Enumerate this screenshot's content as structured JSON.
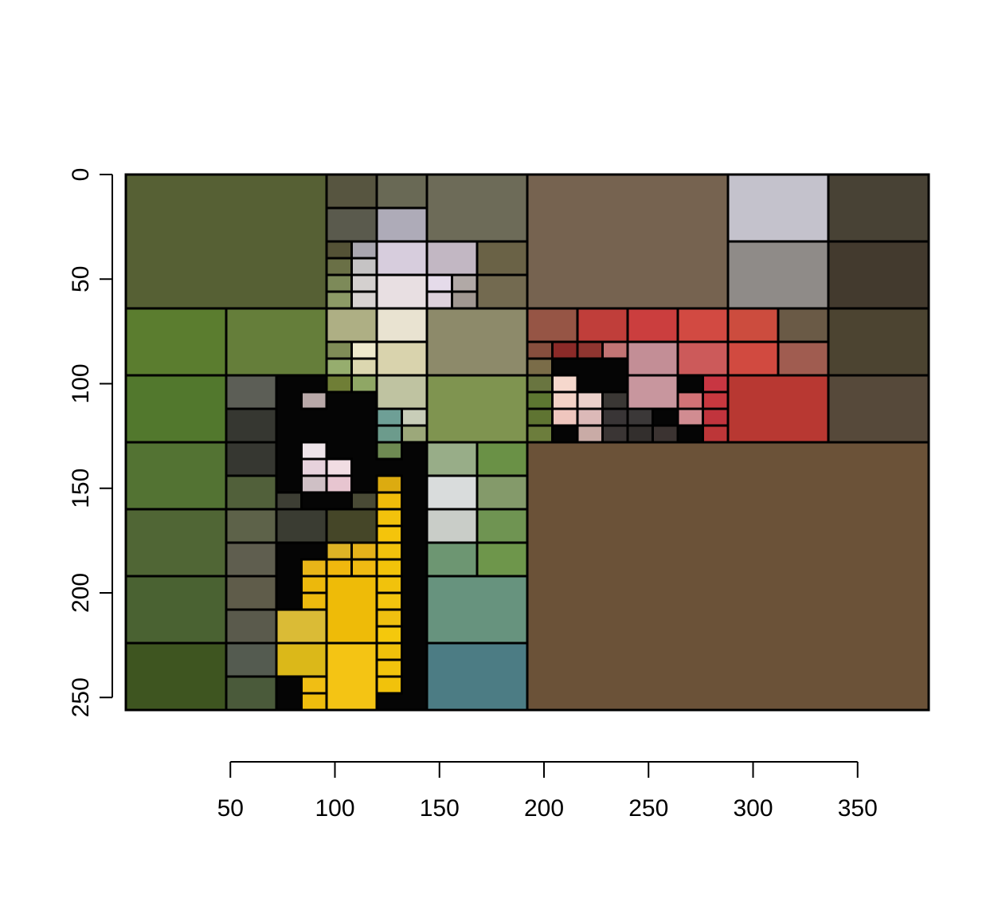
{
  "chart_data": {
    "type": "heatmap",
    "description_kind": "image quadtree tile plot",
    "title": "",
    "xlabel": "",
    "ylabel": "",
    "xlim": [
      0,
      384
    ],
    "ylim": [
      256,
      0
    ],
    "x_ticks": [
      50,
      100,
      150,
      200,
      250,
      300,
      350
    ],
    "y_ticks": [
      0,
      50,
      100,
      150,
      200,
      250
    ],
    "grid": false,
    "background_fill": "#050505",
    "tiles": [
      [
        0,
        0,
        96,
        64,
        "#566034"
      ],
      [
        96,
        0,
        24,
        16,
        "#575540"
      ],
      [
        120,
        0,
        24,
        16,
        "#696955"
      ],
      [
        144,
        0,
        48,
        32,
        "#6d6b58"
      ],
      [
        96,
        16,
        24,
        16,
        "#5a5a4d"
      ],
      [
        120,
        16,
        24,
        16,
        "#aeabb8"
      ],
      [
        96,
        32,
        12,
        8,
        "#545236"
      ],
      [
        108,
        32,
        12,
        8,
        "#a9a6b0"
      ],
      [
        96,
        40,
        12,
        8,
        "#6a7046"
      ],
      [
        108,
        40,
        12,
        8,
        "#c5c3c4"
      ],
      [
        96,
        48,
        12,
        8,
        "#7d8a59"
      ],
      [
        108,
        48,
        12,
        8,
        "#d4d0cf"
      ],
      [
        96,
        56,
        12,
        8,
        "#8c9a66"
      ],
      [
        108,
        56,
        12,
        8,
        "#d8d3d2"
      ],
      [
        120,
        32,
        24,
        16,
        "#d7cddd"
      ],
      [
        120,
        48,
        24,
        16,
        "#e8dfe2"
      ],
      [
        144,
        32,
        24,
        16,
        "#c2b7c3"
      ],
      [
        168,
        32,
        24,
        16,
        "#6a6246"
      ],
      [
        144,
        48,
        12,
        8,
        "#e5dbea"
      ],
      [
        156,
        48,
        12,
        8,
        "#b1a9a6"
      ],
      [
        144,
        56,
        12,
        8,
        "#ddd1dc"
      ],
      [
        156,
        56,
        12,
        8,
        "#a09791"
      ],
      [
        168,
        48,
        24,
        16,
        "#736a50"
      ],
      [
        192,
        0,
        96,
        64,
        "#766350"
      ],
      [
        288,
        0,
        48,
        32,
        "#c4c2cc"
      ],
      [
        336,
        0,
        48,
        32,
        "#484235"
      ],
      [
        288,
        32,
        48,
        32,
        "#8f8b88"
      ],
      [
        336,
        32,
        48,
        32,
        "#433a2e"
      ],
      [
        0,
        64,
        48,
        32,
        "#5b7d2f"
      ],
      [
        48,
        64,
        48,
        32,
        "#657e3a"
      ],
      [
        96,
        64,
        24,
        16,
        "#aeaf84"
      ],
      [
        120,
        64,
        24,
        16,
        "#e9e3d1"
      ],
      [
        96,
        80,
        12,
        8,
        "#7f8c57"
      ],
      [
        108,
        80,
        12,
        8,
        "#efeacd"
      ],
      [
        96,
        88,
        12,
        8,
        "#96ad6e"
      ],
      [
        108,
        88,
        12,
        8,
        "#dcd7b0"
      ],
      [
        120,
        80,
        24,
        16,
        "#d9d3ad"
      ],
      [
        144,
        64,
        48,
        32,
        "#8d8a6a"
      ],
      [
        192,
        64,
        24,
        16,
        "#965545"
      ],
      [
        216,
        64,
        24,
        16,
        "#c03e3a"
      ],
      [
        240,
        64,
        24,
        16,
        "#cb3e3e"
      ],
      [
        264,
        64,
        24,
        16,
        "#d24a42"
      ],
      [
        288,
        64,
        24,
        16,
        "#cc4c3e"
      ],
      [
        312,
        64,
        24,
        16,
        "#6a5a46"
      ],
      [
        336,
        64,
        48,
        32,
        "#4c4431"
      ],
      [
        192,
        80,
        12,
        8,
        "#874f3e"
      ],
      [
        204,
        80,
        12,
        8,
        "#8b2a28"
      ],
      [
        216,
        80,
        12,
        8,
        "#8f3530"
      ],
      [
        228,
        80,
        12,
        8,
        "#c27474"
      ],
      [
        192,
        88,
        12,
        8,
        "#7a6c48"
      ],
      [
        240,
        80,
        24,
        16,
        "#c38e96"
      ],
      [
        264,
        80,
        24,
        16,
        "#cc5a5a"
      ],
      [
        288,
        80,
        24,
        16,
        "#d14a40"
      ],
      [
        312,
        80,
        24,
        16,
        "#a05c50"
      ],
      [
        0,
        96,
        48,
        32,
        "#52782d"
      ],
      [
        48,
        96,
        24,
        16,
        "#5c5e56"
      ],
      [
        48,
        112,
        24,
        16,
        "#363731"
      ],
      [
        96,
        96,
        12,
        8,
        "#6f7e36"
      ],
      [
        108,
        96,
        12,
        8,
        "#8fa765"
      ],
      [
        120,
        96,
        24,
        16,
        "#bfc3a1"
      ],
      [
        144,
        96,
        48,
        32,
        "#7f9450"
      ],
      [
        192,
        96,
        12,
        8,
        "#697540"
      ],
      [
        192,
        104,
        12,
        8,
        "#5d7731"
      ],
      [
        192,
        112,
        12,
        8,
        "#5f7432"
      ],
      [
        192,
        120,
        12,
        8,
        "#6c7d3c"
      ],
      [
        204,
        96,
        12,
        8,
        "#f6d8cd"
      ],
      [
        204,
        104,
        12,
        8,
        "#f3d2c6"
      ],
      [
        204,
        112,
        12,
        8,
        "#efc6be"
      ],
      [
        216,
        104,
        12,
        8,
        "#ead0ca"
      ],
      [
        216,
        112,
        12,
        8,
        "#dcb9b8"
      ],
      [
        216,
        120,
        12,
        8,
        "#c9aba6"
      ],
      [
        228,
        104,
        12,
        8,
        "#3a3734"
      ],
      [
        228,
        112,
        12,
        8,
        "#393536"
      ],
      [
        228,
        120,
        12,
        8,
        "#3a3534"
      ],
      [
        240,
        96,
        24,
        16,
        "#c8969e"
      ],
      [
        240,
        112,
        12,
        8,
        "#3b3838"
      ],
      [
        240,
        120,
        12,
        8,
        "#332f2d"
      ],
      [
        252,
        120,
        12,
        8,
        "#3b3331"
      ],
      [
        264,
        104,
        12,
        8,
        "#d27276"
      ],
      [
        264,
        112,
        12,
        8,
        "#d18c91"
      ],
      [
        276,
        96,
        12,
        8,
        "#c83642"
      ],
      [
        276,
        104,
        12,
        8,
        "#c8383f"
      ],
      [
        276,
        112,
        12,
        8,
        "#c1343d"
      ],
      [
        276,
        120,
        12,
        8,
        "#bd3638"
      ],
      [
        288,
        96,
        48,
        32,
        "#b83832"
      ],
      [
        336,
        96,
        48,
        32,
        "#56493a"
      ],
      [
        120,
        112,
        12,
        8,
        "#6e9f96"
      ],
      [
        132,
        112,
        12,
        8,
        "#c8cdb8"
      ],
      [
        120,
        120,
        12,
        8,
        "#6c9b8c"
      ],
      [
        132,
        120,
        12,
        8,
        "#9ca87a"
      ],
      [
        120,
        128,
        12,
        8,
        "#6e8a52"
      ],
      [
        0,
        128,
        48,
        32,
        "#537333"
      ],
      [
        48,
        128,
        24,
        16,
        "#363731"
      ],
      [
        48,
        144,
        24,
        16,
        "#51603a"
      ],
      [
        144,
        128,
        24,
        16,
        "#98ad88"
      ],
      [
        168,
        128,
        24,
        16,
        "#6a9146"
      ],
      [
        144,
        144,
        24,
        16,
        "#d9dcdc"
      ],
      [
        168,
        144,
        24,
        16,
        "#849a6a"
      ],
      [
        192,
        128,
        192,
        128,
        "#6b5238"
      ],
      [
        84,
        128,
        12,
        8,
        "#eee4e9"
      ],
      [
        84,
        136,
        12,
        8,
        "#e7d2dc"
      ],
      [
        96,
        136,
        12,
        8,
        "#f1dde3"
      ],
      [
        96,
        144,
        12,
        8,
        "#e7c5d0"
      ],
      [
        84,
        144,
        12,
        8,
        "#cfc0c5"
      ],
      [
        84,
        104,
        12,
        8,
        "#b8a8a8"
      ],
      [
        72,
        152,
        12,
        8,
        "#3d3e34"
      ],
      [
        108,
        152,
        12,
        8,
        "#494a35"
      ],
      [
        120,
        144,
        12,
        8,
        "#dcab10"
      ],
      [
        120,
        152,
        12,
        8,
        "#f0bc0a"
      ],
      [
        120,
        160,
        12,
        8,
        "#f2c20c"
      ],
      [
        120,
        168,
        12,
        8,
        "#f4c40b"
      ],
      [
        120,
        176,
        12,
        8,
        "#f1c20c"
      ],
      [
        120,
        184,
        12,
        8,
        "#f2c30a"
      ],
      [
        120,
        192,
        12,
        8,
        "#f1c20c"
      ],
      [
        120,
        200,
        12,
        8,
        "#f3c50e"
      ],
      [
        120,
        208,
        12,
        8,
        "#efc010"
      ],
      [
        120,
        216,
        12,
        8,
        "#f4c80c"
      ],
      [
        120,
        224,
        12,
        8,
        "#f0c10b"
      ],
      [
        120,
        232,
        12,
        8,
        "#f2c40d"
      ],
      [
        120,
        240,
        12,
        8,
        "#f1c20b"
      ],
      [
        0,
        160,
        48,
        32,
        "#506635"
      ],
      [
        48,
        160,
        24,
        16,
        "#5d6249"
      ],
      [
        48,
        176,
        24,
        16,
        "#5f5e4f"
      ],
      [
        72,
        160,
        24,
        16,
        "#3a3c32"
      ],
      [
        96,
        160,
        24,
        16,
        "#454628"
      ],
      [
        144,
        160,
        24,
        16,
        "#c9cdc8"
      ],
      [
        168,
        160,
        24,
        16,
        "#6f9452"
      ],
      [
        144,
        176,
        24,
        16,
        "#6d9672"
      ],
      [
        168,
        176,
        24,
        16,
        "#6e964b"
      ],
      [
        96,
        176,
        12,
        8,
        "#ddb325"
      ],
      [
        108,
        176,
        12,
        8,
        "#e5b21a"
      ],
      [
        84,
        184,
        12,
        8,
        "#e8b518"
      ],
      [
        96,
        184,
        12,
        8,
        "#f1b80e"
      ],
      [
        108,
        184,
        12,
        8,
        "#f0ba12"
      ],
      [
        0,
        192,
        48,
        32,
        "#4a6232"
      ],
      [
        48,
        192,
        24,
        16,
        "#5f5c4a"
      ],
      [
        48,
        208,
        24,
        16,
        "#5a5a4c"
      ],
      [
        84,
        192,
        12,
        8,
        "#ecb80c"
      ],
      [
        84,
        200,
        12,
        8,
        "#edba0e"
      ],
      [
        96,
        192,
        24,
        32,
        "#eebb08"
      ],
      [
        144,
        192,
        48,
        32,
        "#67937e"
      ],
      [
        0,
        224,
        48,
        32,
        "#3e5520"
      ],
      [
        48,
        224,
        24,
        16,
        "#545b50"
      ],
      [
        48,
        240,
        24,
        16,
        "#4a5a3a"
      ],
      [
        72,
        208,
        24,
        16,
        "#dabb36"
      ],
      [
        72,
        224,
        24,
        16,
        "#dbb819"
      ],
      [
        96,
        224,
        24,
        32,
        "#f4c414"
      ],
      [
        84,
        240,
        12,
        8,
        "#f0be14"
      ],
      [
        84,
        248,
        12,
        8,
        "#efbd0d"
      ],
      [
        144,
        224,
        48,
        32,
        "#4c7c84"
      ]
    ]
  }
}
